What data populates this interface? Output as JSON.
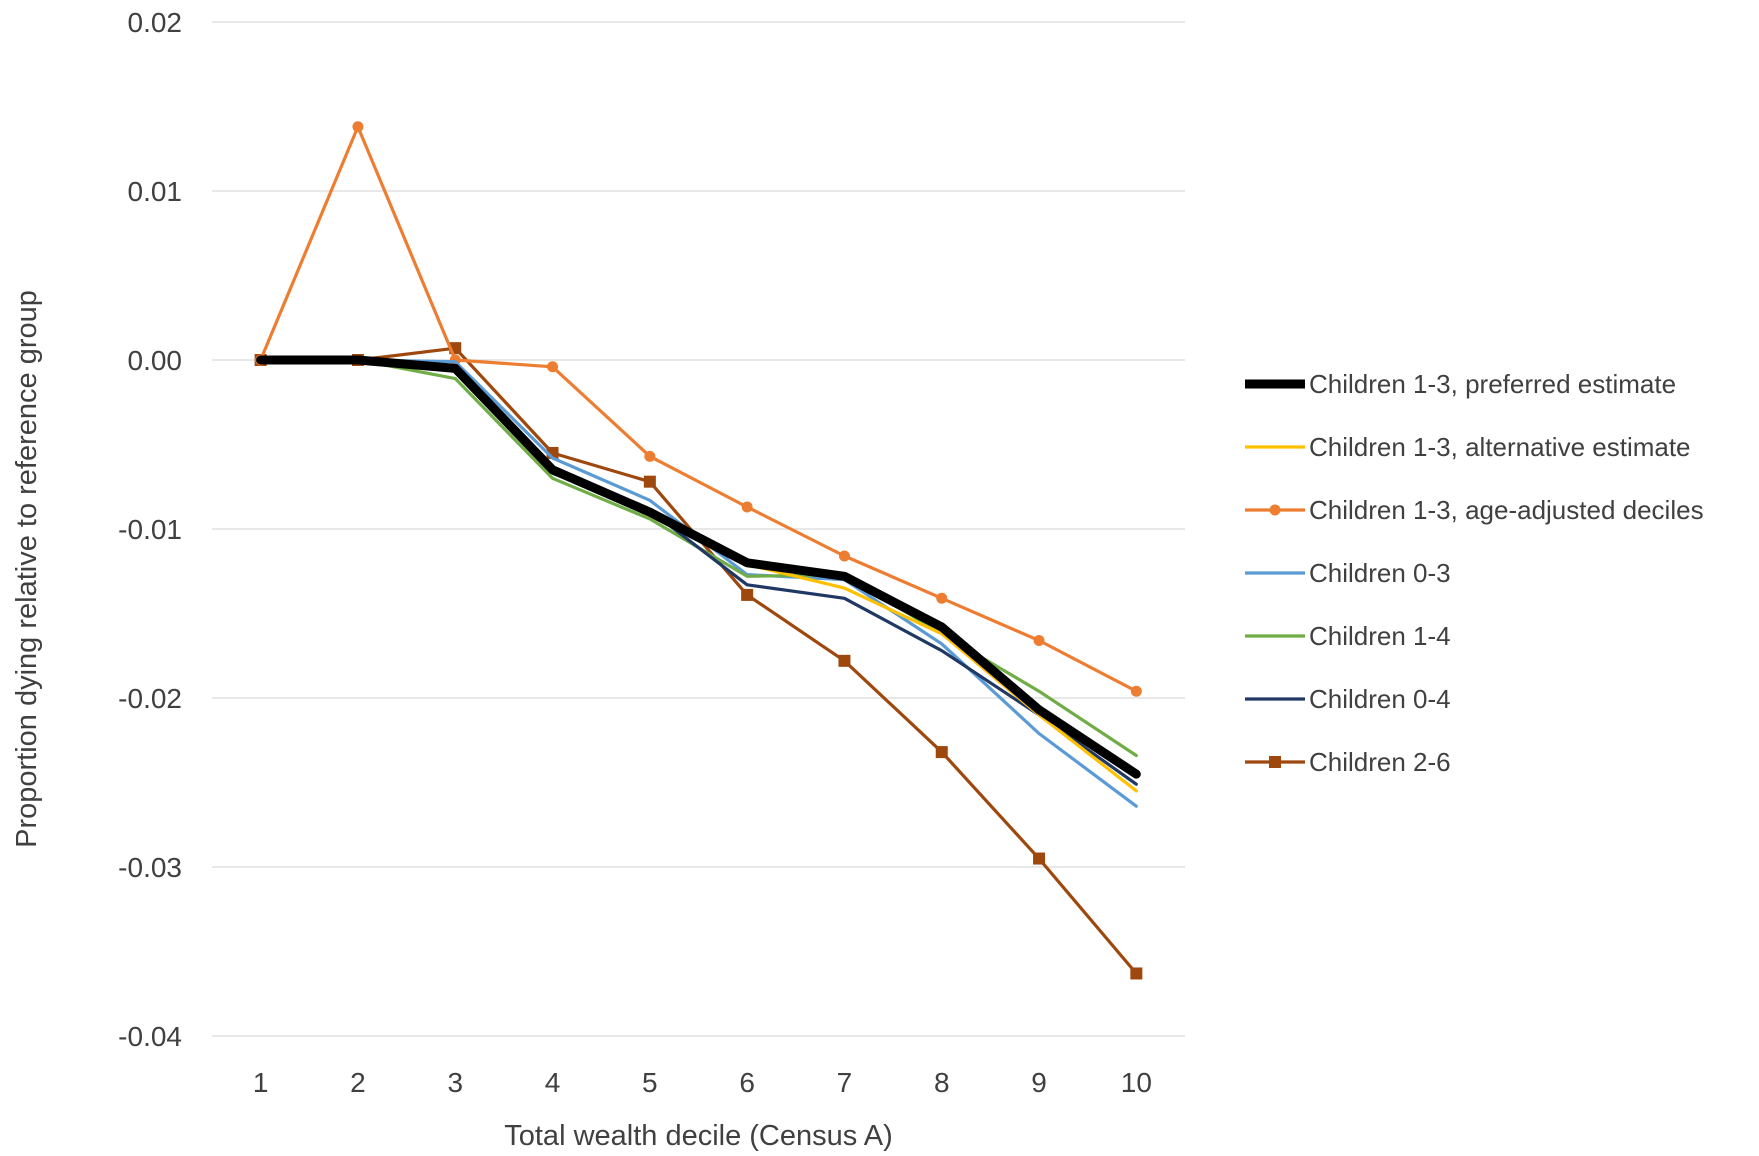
{
  "chart_data": {
    "type": "line",
    "xlabel": "Total wealth decile (Census A)",
    "ylabel": "Proportion dying relative to reference group",
    "ylim": [
      -0.04,
      0.02
    ],
    "yticks": [
      "0.02",
      "0.01",
      "0.00",
      "-0.01",
      "-0.02",
      "-0.03",
      "-0.04"
    ],
    "ytick_values": [
      0.02,
      0.01,
      0.0,
      -0.01,
      -0.02,
      -0.03,
      -0.04
    ],
    "categories": [
      "1",
      "2",
      "3",
      "4",
      "5",
      "6",
      "7",
      "8",
      "9",
      "10"
    ],
    "grid": "horizontal",
    "legend_position": "right",
    "series": [
      {
        "name": "Children 1-3, preferred estimate",
        "color": "#000000",
        "width": "thick",
        "marker": "none",
        "values": [
          0.0,
          0.0,
          -0.0005,
          -0.0065,
          -0.009,
          -0.012,
          -0.0128,
          -0.0158,
          -0.0207,
          -0.0245
        ]
      },
      {
        "name": "Children 1-3, alternative estimate",
        "color": "#FFC000",
        "width": "normal",
        "marker": "none",
        "values": [
          0.0,
          0.0,
          -0.0005,
          -0.0064,
          -0.0092,
          -0.0121,
          -0.0135,
          -0.0162,
          -0.021,
          -0.0255
        ]
      },
      {
        "name": "Children 1-3, age-adjusted deciles",
        "color": "#ED7D31",
        "width": "normal",
        "marker": "circle",
        "values": [
          0.0,
          0.0138,
          0.0,
          -0.0004,
          -0.0057,
          -0.0087,
          -0.0116,
          -0.0141,
          -0.0166,
          -0.0196
        ]
      },
      {
        "name": "Children 0-3",
        "color": "#5B9BD5",
        "width": "normal",
        "marker": "none",
        "values": [
          0.0,
          0.0,
          -0.0001,
          -0.0058,
          -0.0083,
          -0.0127,
          -0.013,
          -0.0168,
          -0.0221,
          -0.0264
        ]
      },
      {
        "name": "Children 1-4",
        "color": "#70AD47",
        "width": "normal",
        "marker": "none",
        "values": [
          0.0,
          0.0,
          -0.0011,
          -0.007,
          -0.0094,
          -0.0128,
          -0.0127,
          -0.0162,
          -0.0196,
          -0.0234
        ]
      },
      {
        "name": "Children 0-4",
        "color": "#203864",
        "width": "normal",
        "marker": "none",
        "values": [
          0.0,
          0.0,
          -0.0004,
          -0.0067,
          -0.0089,
          -0.0133,
          -0.0141,
          -0.0172,
          -0.021,
          -0.0251
        ]
      },
      {
        "name": "Children 2-6",
        "color": "#9E480E",
        "width": "normal",
        "marker": "square",
        "values": [
          0.0,
          0.0,
          0.0007,
          -0.0055,
          -0.0072,
          -0.0139,
          -0.0178,
          -0.0232,
          -0.0295,
          -0.0363
        ]
      }
    ]
  }
}
